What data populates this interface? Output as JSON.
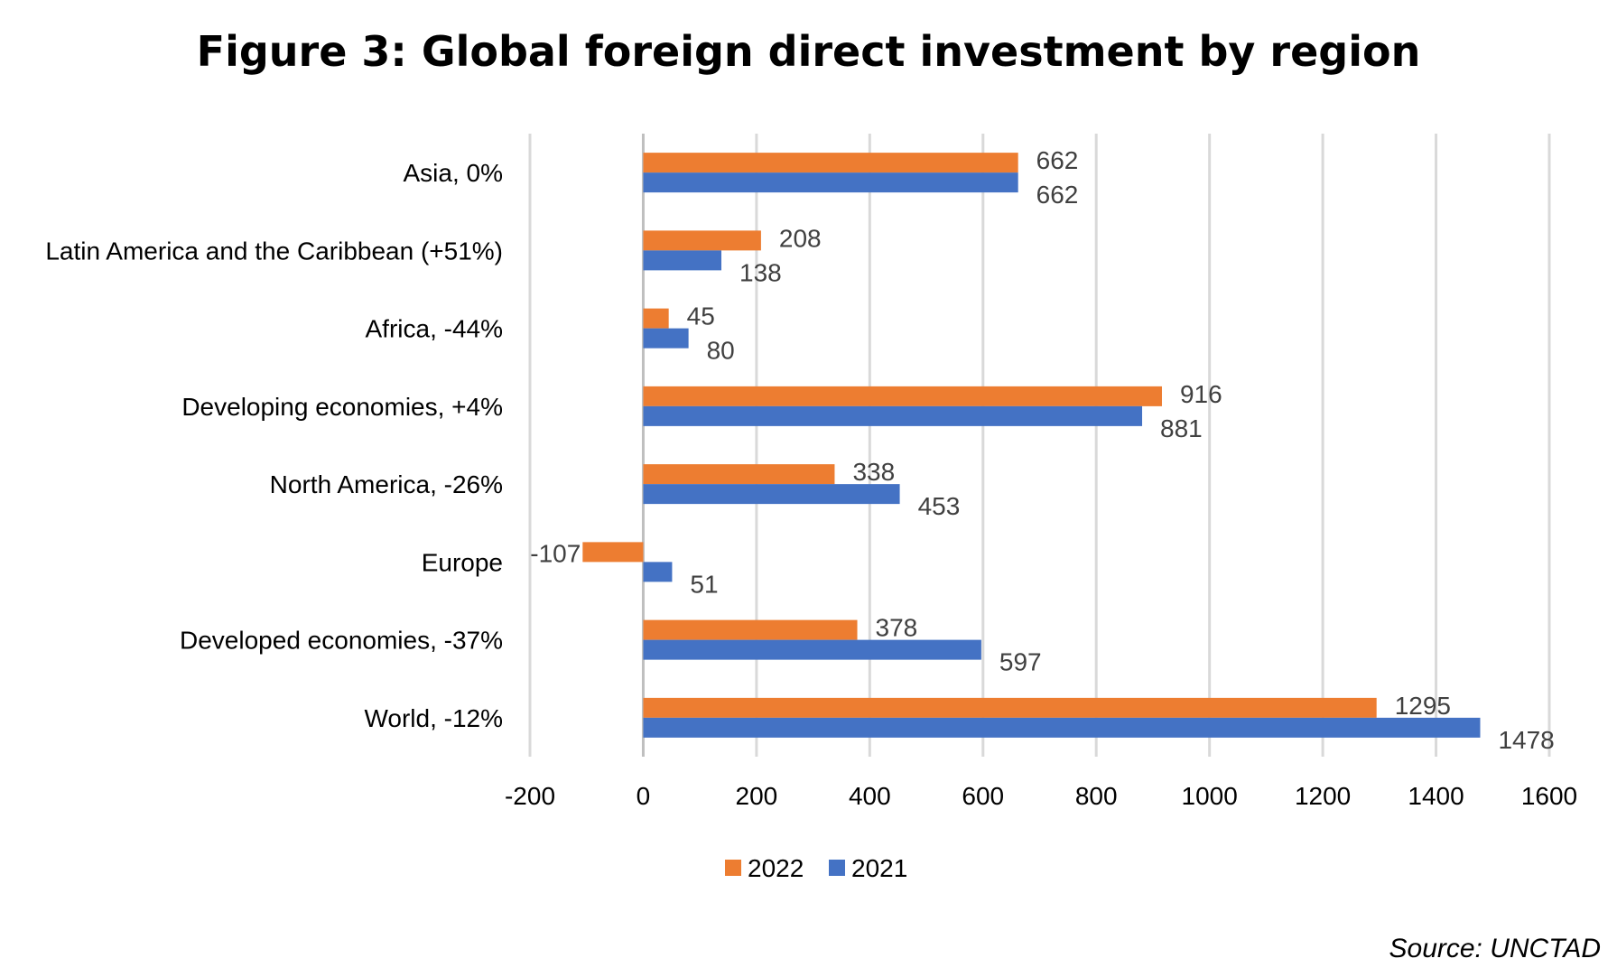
{
  "chart_data": {
    "type": "bar",
    "orientation": "horizontal",
    "title": "Figure 3: Global foreign direct investment by region",
    "categories": [
      "Asia, 0%",
      "Latin America and the Caribbean (+51%)",
      "Africa, -44%",
      "Developing economies, +4%",
      "North America, -26%",
      "Europe",
      "Developed economies, -37%",
      "World, -12%"
    ],
    "series": [
      {
        "name": "2022",
        "color": "#ED7D31",
        "values": [
          662,
          208,
          45,
          916,
          338,
          -107,
          378,
          1295
        ]
      },
      {
        "name": "2021",
        "color": "#4472C4",
        "values": [
          662,
          138,
          80,
          881,
          453,
          51,
          597,
          1478
        ]
      }
    ],
    "xlim": [
      -200,
      1600
    ],
    "xticks": [
      -200,
      0,
      200,
      400,
      600,
      800,
      1000,
      1200,
      1400,
      1600
    ],
    "xlabel": "",
    "ylabel": "",
    "grid": true,
    "legend_position": "bottom"
  },
  "source": "Source: UNCTAD"
}
